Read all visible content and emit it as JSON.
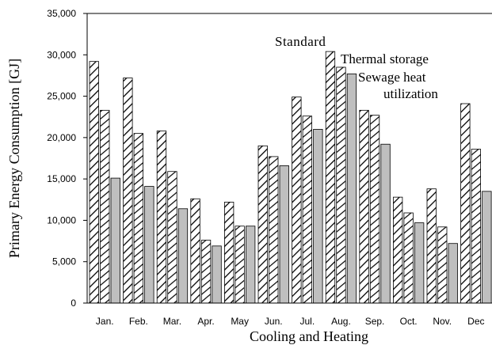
{
  "chart_data": {
    "type": "bar",
    "title": "",
    "xlabel": "Cooling and Heating",
    "ylabel": "Primary Energy Consumption [GJ]",
    "categories": [
      "Jan.",
      "Feb.",
      "Mar.",
      "Apr.",
      "May",
      "Jun.",
      "Jul.",
      "Aug.",
      "Sep.",
      "Oct.",
      "Nov.",
      "Dec"
    ],
    "ylim": [
      0,
      35000
    ],
    "yticks": [
      "0",
      "5,000",
      "10,000",
      "15,000",
      "20,000",
      "25,000",
      "30,000",
      "35,000"
    ],
    "grid": false,
    "legend_placement": "top-right",
    "series": [
      {
        "name": "Standard",
        "pattern": "diagonal-hatch",
        "color": "#ffffff",
        "values": [
          29200,
          27200,
          20800,
          12600,
          12200,
          19000,
          24900,
          30400,
          23300,
          12800,
          13800,
          24100
        ]
      },
      {
        "name": "Thermal storage",
        "pattern": "diagonal-hatch",
        "color": "#ffffff",
        "values": [
          23300,
          20500,
          15900,
          7600,
          9300,
          17700,
          22600,
          28500,
          22700,
          10900,
          9200,
          18600
        ]
      },
      {
        "name": "Sewage heat utilization",
        "pattern": "solid",
        "color": "#bfbfbf",
        "values": [
          15100,
          14100,
          11400,
          6900,
          9300,
          16600,
          21000,
          27700,
          19200,
          9700,
          7200,
          13500
        ]
      }
    ]
  },
  "legend_labels": {
    "standard": "Standard",
    "thermal_line1": "Thermal storage",
    "sewage_line1": "Sewage heat",
    "sewage_line2": "utilization"
  }
}
